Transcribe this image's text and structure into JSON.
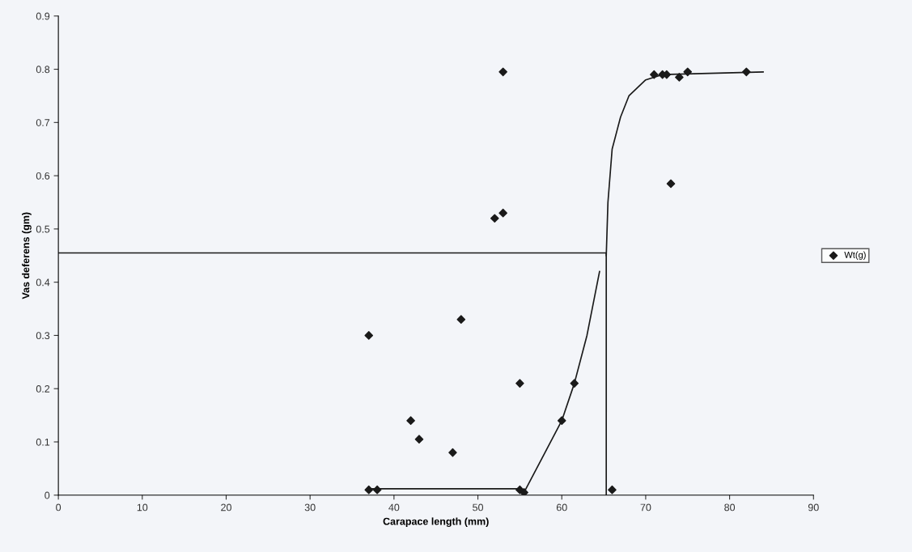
{
  "chart_data": {
    "type": "scatter",
    "xlabel": "Carapace length (mm)",
    "ylabel": "Vas deferens (gm)",
    "xlim": [
      0,
      90
    ],
    "xticks": [
      0,
      10,
      20,
      30,
      40,
      50,
      60,
      70,
      80,
      90
    ],
    "ylim": [
      0,
      0.9
    ],
    "yticks": [
      0,
      0.1,
      0.2,
      0.3,
      0.4,
      0.5,
      0.6,
      0.7,
      0.8,
      0.9
    ],
    "grid": false,
    "legend": "right",
    "series": [
      {
        "name": "Wt(g)",
        "marker": "diamond",
        "color": "#1a1a1a",
        "x": [
          37,
          37,
          38,
          42,
          43,
          47,
          48,
          52,
          53,
          53,
          55,
          55,
          55.5,
          60,
          61.5,
          66,
          71,
          72,
          72.5,
          73,
          74,
          75,
          82
        ],
        "values": [
          0.3,
          0.01,
          0.01,
          0.14,
          0.105,
          0.08,
          0.33,
          0.52,
          0.53,
          0.795,
          0.21,
          0.01,
          0.005,
          0.14,
          0.21,
          0.01,
          0.79,
          0.79,
          0.79,
          0.585,
          0.785,
          0.795,
          0.795
        ]
      },
      {
        "type": "line",
        "marker": "none",
        "color": "#1a1a1a",
        "x": [
          37,
          55,
          55.5,
          58,
          60,
          61.5,
          63,
          64.5
        ],
        "values": [
          0.012,
          0.012,
          0.005,
          0.08,
          0.14,
          0.21,
          0.3,
          0.42
        ]
      },
      {
        "type": "line",
        "marker": "none",
        "color": "#1a1a1a",
        "x": [
          65.3,
          65.5,
          66,
          67,
          68,
          70,
          72,
          84
        ],
        "values": [
          0.45,
          0.55,
          0.65,
          0.71,
          0.75,
          0.78,
          0.79,
          0.795
        ]
      },
      {
        "type": "line",
        "marker": "none",
        "color": "#1a1a1a",
        "x": [
          0,
          65.3,
          65.3
        ],
        "values": [
          0.455,
          0.455,
          0
        ]
      }
    ]
  }
}
